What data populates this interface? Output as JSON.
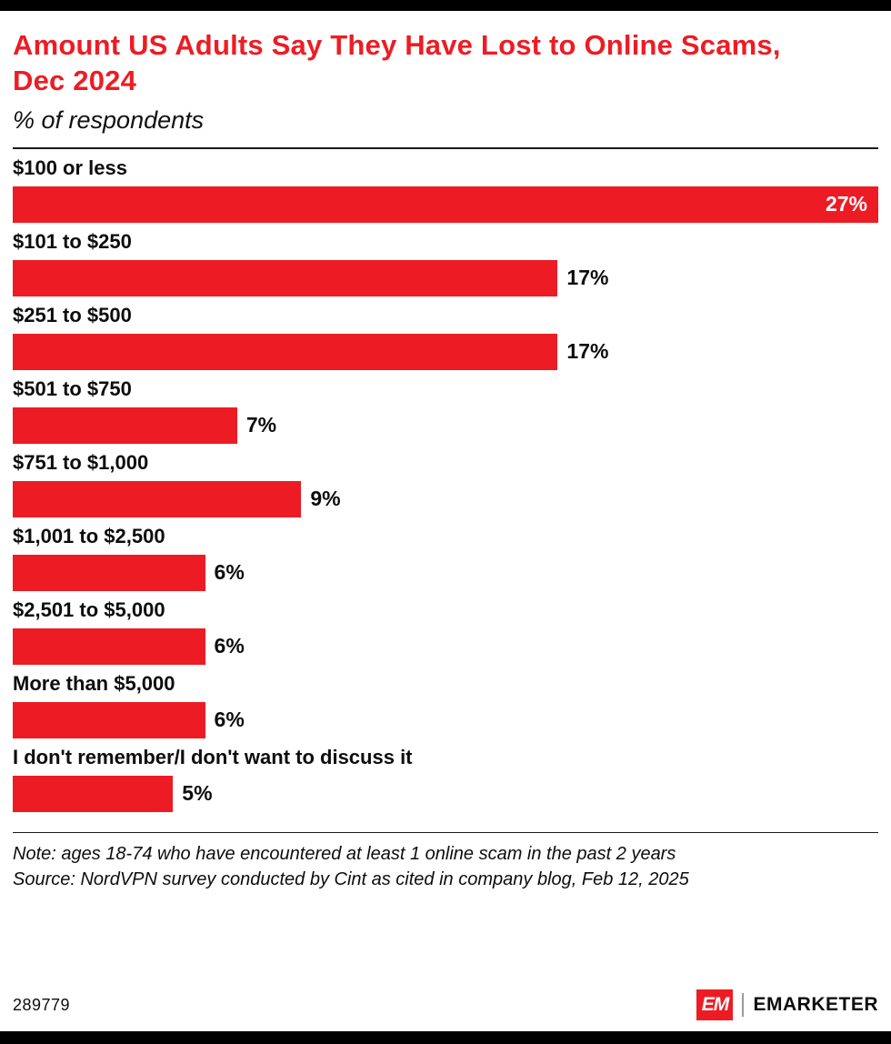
{
  "header": {
    "title": "Amount US Adults Say They Have Lost to Online Scams, Dec 2024",
    "subtitle": "% of respondents"
  },
  "chart_data": {
    "type": "bar",
    "orientation": "horizontal",
    "title": "Amount US Adults Say They Have Lost to Online Scams, Dec 2024",
    "subtitle": "% of respondents",
    "categories": [
      "$100 or less",
      "$101 to $250",
      "$251 to $500",
      "$501 to $750",
      "$751 to $1,000",
      "$1,001 to $2,500",
      "$2,501 to $5,000",
      "More than $5,000",
      "I don't remember/I don't want to discuss it"
    ],
    "values": [
      27,
      17,
      17,
      7,
      9,
      6,
      6,
      6,
      5
    ],
    "value_suffix": "%",
    "max_value": 27,
    "bar_color": "#ED1C24",
    "grid": false,
    "legend": false
  },
  "footnotes": {
    "note": "Note: ages 18-74 who have encountered at least 1 online scam in the past 2 years",
    "source": "Source: NordVPN survey conducted by Cint as cited in company blog, Feb 12, 2025"
  },
  "footer": {
    "chart_id": "289779",
    "logo_text": "EM",
    "brand": "EMARKETER"
  },
  "colors": {
    "accent_red": "#ED1C24",
    "text_black": "#0d0d0d"
  }
}
